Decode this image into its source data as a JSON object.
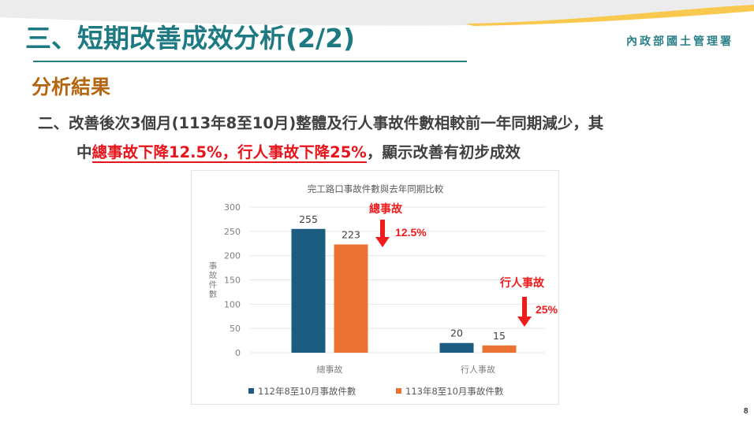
{
  "slide": {
    "title": "三、短期改善成效分析(2/2)",
    "organization": "內政部國土管理署",
    "page_number": "8"
  },
  "section": {
    "heading": "分析結果"
  },
  "body": {
    "line1": "二、改善後次3個月(113年8至10月)整體及行人事故件數相較前一年同期減少，其",
    "line2_prefix": "中",
    "line2_highlight": "總事故下降12.5%，行人事故下降25%",
    "line2_suffix": "，顯示改善有初步成效"
  },
  "colors": {
    "title": "#1e7a82",
    "section": "#b5650f",
    "highlight": "#e8141b",
    "series_2023": "#1b5c80",
    "series_2024": "#ea7232",
    "swoosh_gray": "#ececec",
    "swoosh_yellow": "#f9c94f"
  },
  "chart_data": {
    "type": "bar",
    "title": "完工路口事故件數與去年同期比較",
    "xlabel": "",
    "ylabel": "事故件數",
    "ylim": [
      0,
      300
    ],
    "yticks": [
      0,
      50,
      100,
      150,
      200,
      250,
      300
    ],
    "grid": true,
    "legend_position": "bottom",
    "categories": [
      "總事故",
      "行人事故"
    ],
    "series": [
      {
        "name": "112年8至10月事故件數",
        "values": [
          255,
          20
        ],
        "color": "#1b5c80"
      },
      {
        "name": "113年8至10月事故件數",
        "values": [
          223,
          15
        ],
        "color": "#ea7232"
      }
    ],
    "annotations": [
      {
        "label": "總事故",
        "change": "12.5%",
        "direction": "down"
      },
      {
        "label": "行人事故",
        "change": "25%",
        "direction": "down"
      }
    ]
  }
}
